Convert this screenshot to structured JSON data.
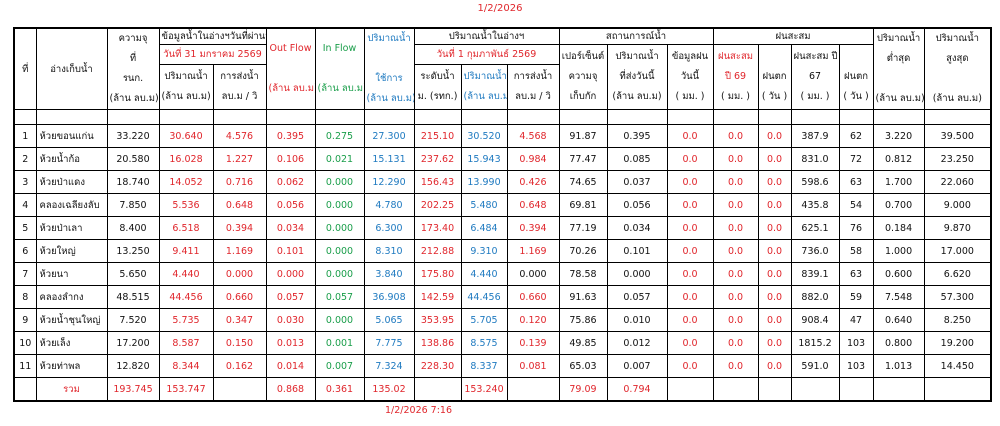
{
  "title": "1/2/2026",
  "footer_timestamp": "1/2/2026 7:16",
  "colors": {
    "red": "#e0262c",
    "green": "#1a9e4a",
    "blue": "#1f7ac0",
    "black": "#111111"
  },
  "header": {
    "no": "ที่",
    "reservoir": "อ่างเก็บน้ำ",
    "capacity": [
      "ความจุ",
      "ที่",
      "รนก.",
      "(ล้าน ลบ.ม)"
    ],
    "prev_group": "ข้อมูลน้ำในอ่างฯวันที่ผ่านมา",
    "prev_date": "วันที่ 31 มกราคม 2569",
    "prev_volume": [
      "ปริมาณน้ำ",
      "(ล้าน ลบ.ม)"
    ],
    "prev_release": [
      "การส่งน้ำ",
      "ลบ.ม / วิ"
    ],
    "outflow": [
      "Out Flow",
      "(ล้าน ลบ.ม)"
    ],
    "inflow": [
      "In Flow",
      "(ล้าน ลบ.ม)"
    ],
    "usable": [
      "ปริมาณน้ำ",
      "ใช้การ",
      "(ล้าน ลบ.ม)"
    ],
    "cur_group": "ปริมาณน้ำในอ่างฯ",
    "cur_date": "วันที่ 1 กุมภาพันธ์ 2569",
    "cur_level": [
      "ระดับน้ำ",
      "ม. (รทก.)"
    ],
    "cur_volume": [
      "ปริมาณน้ำ",
      "(ล้าน ลบ.ม)"
    ],
    "cur_release": [
      "การส่งน้ำ",
      "ลบ.ม / วิ"
    ],
    "status_group": "สถานการณ์น้ำ",
    "percent": [
      "เปอร์เซ็นต์",
      "ความจุ",
      "เก็บกัก"
    ],
    "sent_today": [
      "ปริมาณน้ำ",
      "ที่ส่งวันนี้",
      "(ล้าน ลบ.ม)"
    ],
    "rain_today": [
      "ข้อมูลฝน",
      "วันนี้",
      "( มม. )"
    ],
    "rain_group": "ฝนสะสม",
    "rain69": [
      "ฝนสะสม",
      "ปี 69",
      "( มม. )"
    ],
    "rain_days69": [
      "ฝนตก",
      "( วัน )"
    ],
    "rain67": [
      "ฝนสะสม ปี",
      "67",
      "( มม. )"
    ],
    "rain_days67": [
      "ฝนตก",
      "( วัน )"
    ],
    "min": [
      "ปริมาณน้ำ",
      "ต่ำสุด",
      "(ล้าน ลบ.ม)"
    ],
    "max": [
      "ปริมาณน้ำ",
      "สูงสุด",
      "(ล้าน ลบ.ม)"
    ]
  },
  "rows": [
    [
      "1",
      "ห้วยขอนแก่น",
      "33.220",
      "30.640",
      "4.576",
      "0.395",
      "0.275",
      "27.300",
      "215.10",
      "30.520",
      "4.568",
      "91.87",
      "0.395",
      "0.0",
      "0.0",
      "0.0",
      "387.9",
      "62",
      "3.220",
      "39.500"
    ],
    [
      "2",
      "ห้วยน้ำก้อ",
      "20.580",
      "16.028",
      "1.227",
      "0.106",
      "0.021",
      "15.131",
      "237.62",
      "15.943",
      "0.984",
      "77.47",
      "0.085",
      "0.0",
      "0.0",
      "0.0",
      "831.0",
      "72",
      "0.812",
      "23.250"
    ],
    [
      "3",
      "ห้วยป่าแดง",
      "18.740",
      "14.052",
      "0.716",
      "0.062",
      "0.000",
      "12.290",
      "156.43",
      "13.990",
      "0.426",
      "74.65",
      "0.037",
      "0.0",
      "0.0",
      "0.0",
      "598.6",
      "63",
      "1.700",
      "22.060"
    ],
    [
      "4",
      "คลองเฉลียงลับ",
      "7.850",
      "5.536",
      "0.648",
      "0.056",
      "0.000",
      "4.780",
      "202.25",
      "5.480",
      "0.648",
      "69.81",
      "0.056",
      "0.0",
      "0.0",
      "0.0",
      "435.8",
      "54",
      "0.700",
      "9.000"
    ],
    [
      "5",
      "ห้วยป่าเลา",
      "8.400",
      "6.518",
      "0.394",
      "0.034",
      "0.000",
      "6.300",
      "173.40",
      "6.484",
      "0.394",
      "77.19",
      "0.034",
      "0.0",
      "0.0",
      "0.0",
      "625.1",
      "76",
      "0.184",
      "9.870"
    ],
    [
      "6",
      "ห้วยใหญ่",
      "13.250",
      "9.411",
      "1.169",
      "0.101",
      "0.000",
      "8.310",
      "212.88",
      "9.310",
      "1.169",
      "70.26",
      "0.101",
      "0.0",
      "0.0",
      "0.0",
      "736.0",
      "58",
      "1.000",
      "17.000"
    ],
    [
      "7",
      "ห้วยนา",
      "5.650",
      "4.440",
      "0.000",
      "0.000",
      "0.000",
      "3.840",
      "175.80",
      "4.440",
      "0.000",
      "78.58",
      "0.000",
      "0.0",
      "0.0",
      "0.0",
      "839.1",
      "63",
      "0.600",
      "6.620"
    ],
    [
      "8",
      "คลองลำกง",
      "48.515",
      "44.456",
      "0.660",
      "0.057",
      "0.057",
      "36.908",
      "142.59",
      "44.456",
      "0.660",
      "91.63",
      "0.057",
      "0.0",
      "0.0",
      "0.0",
      "882.0",
      "59",
      "7.548",
      "57.300"
    ],
    [
      "9",
      "ห้วยน้ำชุนใหญ่",
      "7.520",
      "5.735",
      "0.347",
      "0.030",
      "0.000",
      "5.065",
      "353.95",
      "5.705",
      "0.120",
      "75.86",
      "0.010",
      "0.0",
      "0.0",
      "0.0",
      "908.4",
      "47",
      "0.640",
      "8.250"
    ],
    [
      "10",
      "ห้วยเล็ง",
      "17.200",
      "8.587",
      "0.150",
      "0.013",
      "0.001",
      "7.775",
      "138.86",
      "8.575",
      "0.139",
      "49.85",
      "0.012",
      "0.0",
      "0.0",
      "0.0",
      "1815.2",
      "103",
      "0.800",
      "19.200"
    ],
    [
      "11",
      "ห้วยท่าพล",
      "12.820",
      "8.344",
      "0.162",
      "0.014",
      "0.007",
      "7.324",
      "228.30",
      "8.337",
      "0.081",
      "65.03",
      "0.007",
      "0.0",
      "0.0",
      "0.0",
      "591.0",
      "103",
      "1.013",
      "14.450"
    ]
  ],
  "total": [
    "",
    "รวม",
    "193.745",
    "153.747",
    "",
    "0.868",
    "0.361",
    "135.02",
    "",
    "153.240",
    "",
    "79.09",
    "0.794",
    "",
    "",
    "",
    "",
    "",
    "",
    ""
  ]
}
